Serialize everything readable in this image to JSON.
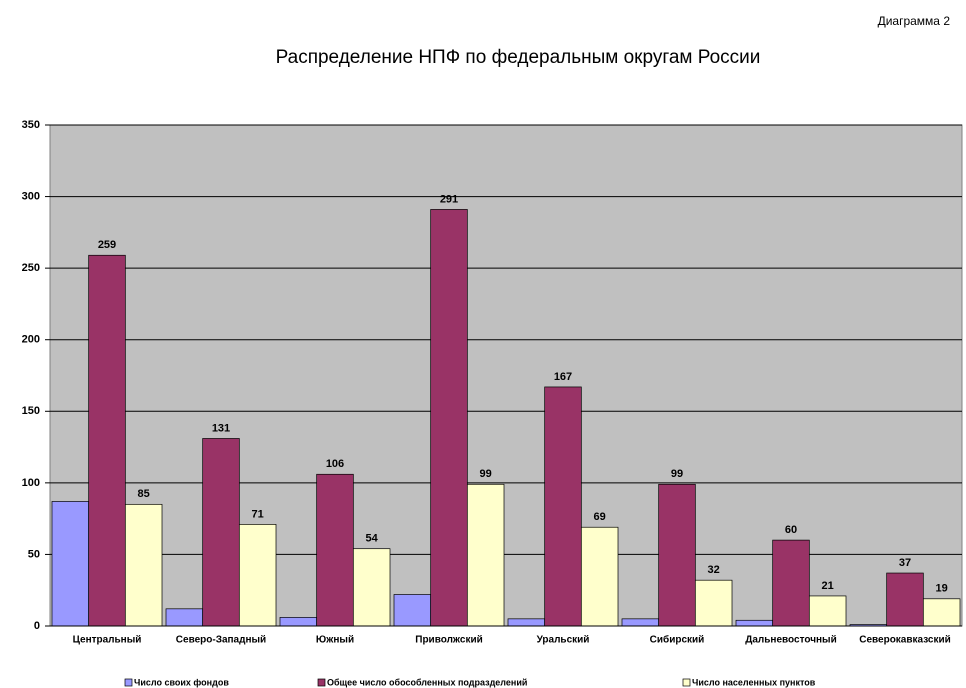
{
  "chart_data": {
    "type": "bar",
    "annotation": "Диаграмма 2",
    "title": "Распределение НПФ по федеральным округам России",
    "categories": [
      "Центральный",
      "Северо-Западный",
      "Южный",
      "Приволжский",
      "Уральский",
      "Сибирский",
      "Дальневосточный",
      "Северокавказский"
    ],
    "series": [
      {
        "name": "Число своих фондов",
        "color": "#9999ff",
        "show_labels": false,
        "values": [
          87,
          12,
          6,
          22,
          5,
          5,
          4,
          1
        ]
      },
      {
        "name": "Общее число обособленных подразделений",
        "color": "#993366",
        "show_labels": true,
        "values": [
          259,
          131,
          106,
          291,
          167,
          99,
          60,
          37
        ]
      },
      {
        "name": "Число населенных пунктов",
        "color": "#ffffcc",
        "show_labels": true,
        "values": [
          85,
          71,
          54,
          99,
          69,
          32,
          21,
          19
        ]
      }
    ],
    "ylim": [
      0,
      350
    ],
    "yticks": [
      0,
      50,
      100,
      150,
      200,
      250,
      300,
      350
    ],
    "grid": true,
    "plot_background": "#c0c0c0",
    "legend": "bottom"
  }
}
